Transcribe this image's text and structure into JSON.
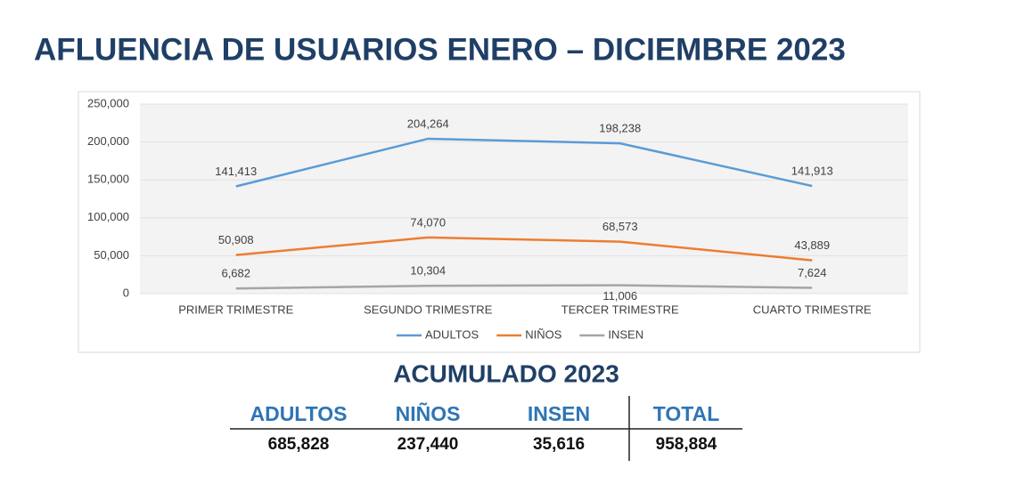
{
  "chart_data": {
    "type": "line",
    "title": "AFLUENCIA DE USUARIOS ENERO – DICIEMBRE 2023",
    "categories": [
      "PRIMER TRIMESTRE",
      "SEGUNDO TRIMESTRE",
      "TERCER TRIMESTRE",
      "CUARTO TRIMESTRE"
    ],
    "series": [
      {
        "name": "ADULTOS",
        "color": "#5b9bd5",
        "values": [
          141413,
          204264,
          198238,
          141913
        ],
        "value_labels": [
          "141,413",
          "204,264",
          "198,238",
          "141,913"
        ]
      },
      {
        "name": "NIÑOS",
        "color": "#ed7d31",
        "values": [
          50908,
          74070,
          68573,
          43889
        ],
        "value_labels": [
          "50,908",
          "74,070",
          "68,573",
          "43,889"
        ]
      },
      {
        "name": "INSEN",
        "color": "#a5a5a5",
        "values": [
          6682,
          10304,
          11006,
          7624
        ],
        "value_labels": [
          "6,682",
          "10,304",
          "11,006",
          "7,624"
        ]
      }
    ],
    "ylim": [
      0,
      250000
    ],
    "yticks": [
      0,
      {
        "value": 50000,
        "label": "50,000"
      },
      {
        "value": 100000,
        "label": "100,000"
      },
      {
        "value": 150000,
        "label": "150,000"
      },
      {
        "value": 200000,
        "label": "200,000"
      },
      {
        "value": 250000,
        "label": "250,000"
      }
    ],
    "grid": true,
    "legend": "bottom"
  },
  "summary": {
    "title": "ACUMULADO 2023",
    "headers": [
      "ADULTOS",
      "NIÑOS",
      "INSEN",
      "TOTAL"
    ],
    "values": [
      "685,828",
      "237,440",
      "35,616",
      "958,884"
    ]
  }
}
